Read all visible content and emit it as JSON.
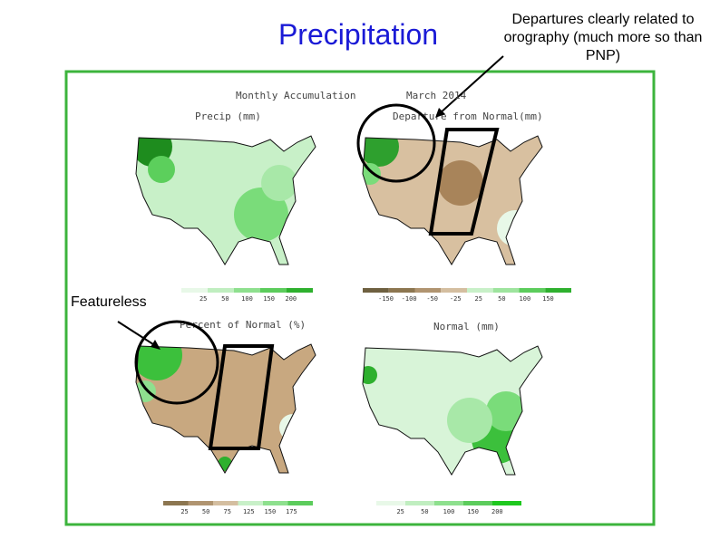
{
  "title": "Precipitation",
  "annotation": "Departures clearly related to orography (much more so than PNP)",
  "featureless": "Featureless",
  "header": {
    "left": "Monthly Accumulation",
    "right": "March 2014"
  },
  "panels": [
    {
      "label": "Precip (mm)",
      "legend": [
        "25",
        "50",
        "100",
        "150",
        "200"
      ]
    },
    {
      "label": "Departure from Normal(mm)",
      "legend": [
        "-150",
        "-100",
        "-50",
        "-25",
        "25",
        "50",
        "100",
        "150"
      ]
    },
    {
      "label": "Percent of Normal (%)",
      "legend": [
        "25",
        "50",
        "75",
        "125",
        "150",
        "175"
      ]
    },
    {
      "label": "Normal (mm)",
      "legend": [
        "25",
        "50",
        "100",
        "150",
        "200"
      ]
    }
  ]
}
